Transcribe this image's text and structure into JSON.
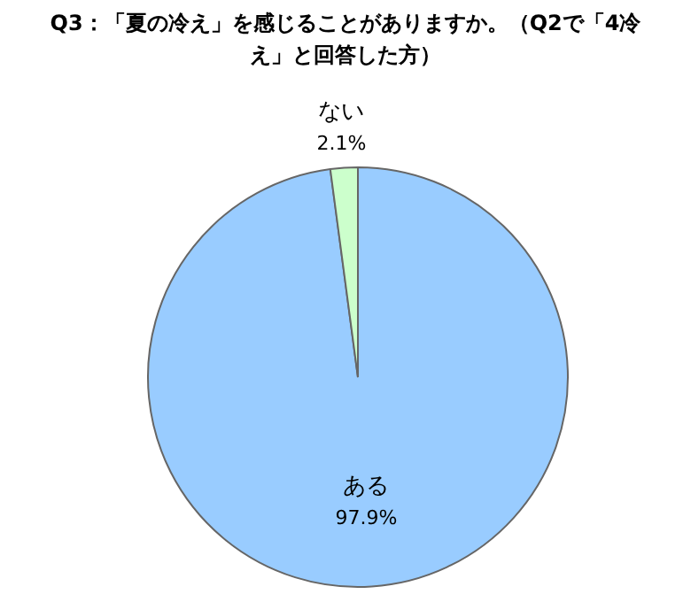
{
  "chart_data": {
    "type": "pie",
    "title": "Q3：「夏の冷え」を感じることがありますか。（Q2で「4冷え」と回答した方）",
    "categories": [
      "ある",
      "ない"
    ],
    "values": [
      97.9,
      2.1
    ],
    "value_labels": [
      "97.9%",
      "2.1%"
    ],
    "colors": [
      "#99ccff",
      "#ccffcc"
    ],
    "legend": false
  }
}
